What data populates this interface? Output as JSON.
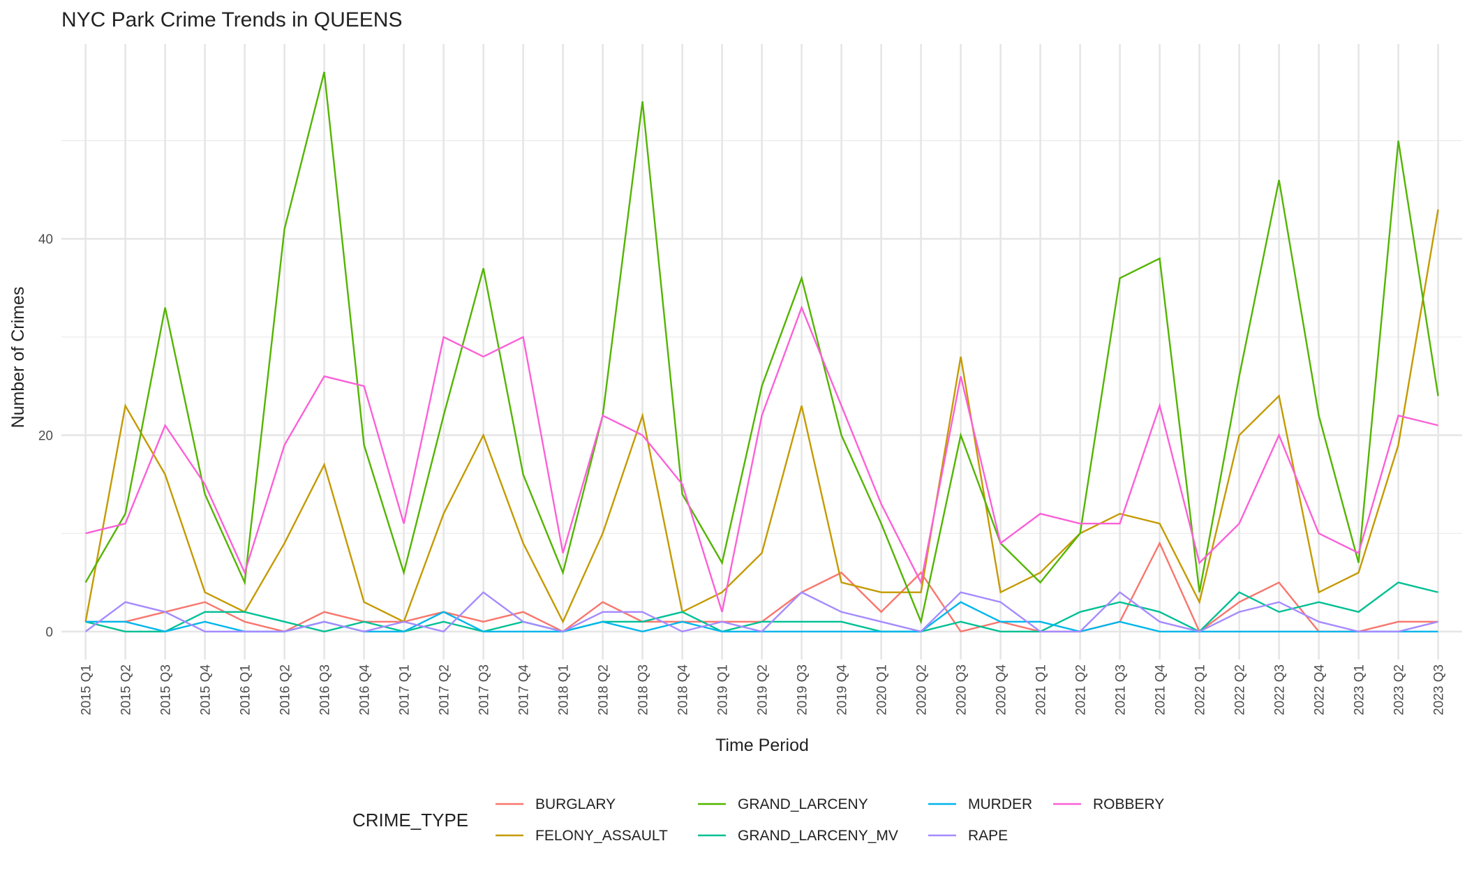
{
  "chart_data": {
    "type": "line",
    "title": "NYC Park Crime Trends in QUEENS",
    "x_label": "Time Period",
    "y_label": "Number of Crimes",
    "legend_title": "CRIME_TYPE",
    "legend_position": "bottom",
    "grid": true,
    "categories": [
      "2015 Q1",
      "2015 Q2",
      "2015 Q3",
      "2015 Q4",
      "2016 Q1",
      "2016 Q2",
      "2016 Q3",
      "2016 Q4",
      "2017 Q1",
      "2017 Q2",
      "2017 Q3",
      "2017 Q4",
      "2018 Q1",
      "2018 Q2",
      "2018 Q3",
      "2018 Q4",
      "2019 Q1",
      "2019 Q2",
      "2019 Q3",
      "2019 Q4",
      "2020 Q1",
      "2020 Q2",
      "2020 Q3",
      "2020 Q4",
      "2021 Q1",
      "2021 Q2",
      "2021 Q3",
      "2021 Q4",
      "2022 Q1",
      "2022 Q2",
      "2022 Q3",
      "2022 Q4",
      "2023 Q1",
      "2023 Q2",
      "2023 Q3"
    ],
    "ylim": [
      -2.85,
      59.85
    ],
    "yticks": [
      0,
      20,
      40
    ],
    "minor_yticks": [
      10,
      30,
      50
    ],
    "series": [
      {
        "name": "BURGLARY",
        "color": "#F8766D",
        "values": [
          1,
          1,
          2,
          3,
          1,
          0,
          2,
          1,
          1,
          2,
          1,
          2,
          0,
          3,
          1,
          1,
          1,
          1,
          4,
          6,
          2,
          6,
          0,
          1,
          0,
          0,
          1,
          9,
          0,
          3,
          5,
          0,
          0,
          1,
          1
        ]
      },
      {
        "name": "FELONY_ASSAULT",
        "color": "#C49A00",
        "values": [
          1,
          23,
          16,
          4,
          2,
          9,
          17,
          3,
          1,
          12,
          20,
          9,
          1,
          10,
          22,
          2,
          4,
          8,
          23,
          5,
          4,
          4,
          28,
          4,
          6,
          10,
          12,
          11,
          3,
          20,
          24,
          4,
          6,
          19,
          43
        ]
      },
      {
        "name": "GRAND_LARCENY",
        "color": "#53B400",
        "values": [
          5,
          12,
          33,
          14,
          5,
          41,
          57,
          19,
          6,
          22,
          37,
          16,
          6,
          22,
          54,
          14,
          7,
          25,
          36,
          20,
          11,
          1,
          20,
          9,
          5,
          10,
          36,
          38,
          4,
          26,
          46,
          22,
          7,
          50,
          24
        ]
      },
      {
        "name": "GRAND_LARCENY_MV",
        "color": "#00C094",
        "values": [
          1,
          0,
          0,
          2,
          2,
          1,
          0,
          1,
          0,
          1,
          0,
          1,
          0,
          1,
          1,
          2,
          0,
          1,
          1,
          1,
          0,
          0,
          1,
          0,
          0,
          2,
          3,
          2,
          0,
          4,
          2,
          3,
          2,
          5,
          4
        ]
      },
      {
        "name": "MURDER",
        "color": "#00B6EB",
        "values": [
          1,
          1,
          0,
          1,
          0,
          0,
          1,
          0,
          0,
          2,
          0,
          0,
          0,
          1,
          0,
          1,
          0,
          0,
          0,
          0,
          0,
          0,
          3,
          1,
          1,
          0,
          1,
          0,
          0,
          0,
          0,
          0,
          0,
          0,
          0
        ]
      },
      {
        "name": "RAPE",
        "color": "#A58AFF",
        "values": [
          0,
          3,
          2,
          0,
          0,
          0,
          1,
          0,
          1,
          0,
          4,
          1,
          0,
          2,
          2,
          0,
          1,
          0,
          4,
          2,
          1,
          0,
          4,
          3,
          0,
          0,
          4,
          1,
          0,
          2,
          3,
          1,
          0,
          0,
          1
        ]
      },
      {
        "name": "ROBBERY",
        "color": "#FB61D7",
        "values": [
          10,
          11,
          21,
          15,
          6,
          19,
          26,
          25,
          11,
          30,
          28,
          30,
          8,
          22,
          20,
          15,
          2,
          22,
          33,
          23,
          13,
          5,
          26,
          9,
          12,
          11,
          11,
          23,
          7,
          11,
          20,
          10,
          8,
          22,
          21
        ]
      }
    ]
  }
}
